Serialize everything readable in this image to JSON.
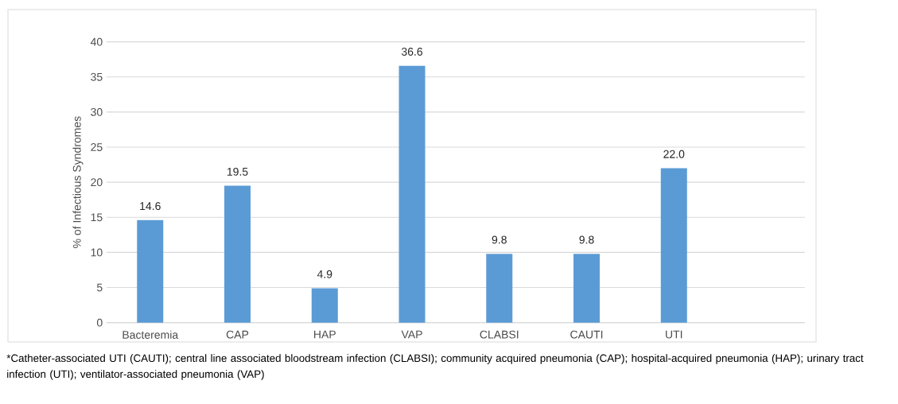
{
  "chart_data": {
    "type": "bar",
    "ylabel": "% of Infectious Syndromes",
    "categories": [
      "Bacteremia",
      "CAP",
      "HAP",
      "VAP",
      "CLABSI",
      "CAUTI",
      "UTI"
    ],
    "values": [
      14.6,
      19.5,
      4.9,
      36.6,
      9.8,
      9.8,
      22.0
    ],
    "value_labels": [
      "14.6",
      "19.5",
      "4.9",
      "36.6",
      "9.8",
      "9.8",
      "22.0"
    ],
    "color": "#5b9bd5",
    "ylim": [
      0,
      40
    ],
    "yticks": [
      0,
      5,
      10,
      15,
      20,
      25,
      30,
      35,
      40
    ],
    "grid": "y",
    "annotations": [
      "*Catheter-associated UTI (CAUTI); central line associated bloodstream infection (CLABSI); community acquired pneumonia (CAP); hospital-acquired pneumonia (HAP); urinary tract infection (UTI); ventilator-associated pneumonia (VAP)"
    ]
  }
}
